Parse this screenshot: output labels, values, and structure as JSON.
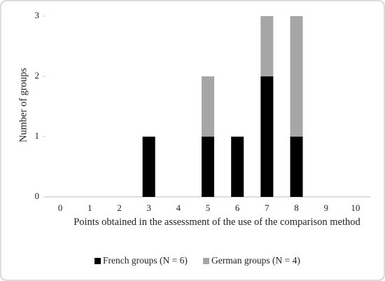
{
  "chart_data": {
    "type": "stacked_bar",
    "categories": [
      "0",
      "1",
      "2",
      "3",
      "4",
      "5",
      "6",
      "7",
      "8",
      "9",
      "10"
    ],
    "series": [
      {
        "name": "French groups (N = 6)",
        "color": "#000000",
        "values": [
          0,
          0,
          0,
          1,
          0,
          1,
          1,
          2,
          1,
          0,
          0
        ]
      },
      {
        "name": "German groups (N = 4)",
        "color": "#a6a6a6",
        "values": [
          0,
          0,
          0,
          0,
          0,
          1,
          0,
          1,
          2,
          0,
          0
        ]
      }
    ],
    "x_label": "Points obtained in the assessment of the use of the comparison method",
    "y_label": "Number of groups",
    "ylim": [
      0,
      3
    ],
    "yticks": [
      0,
      1,
      2,
      3
    ],
    "grid": false,
    "legend": "bottom"
  }
}
